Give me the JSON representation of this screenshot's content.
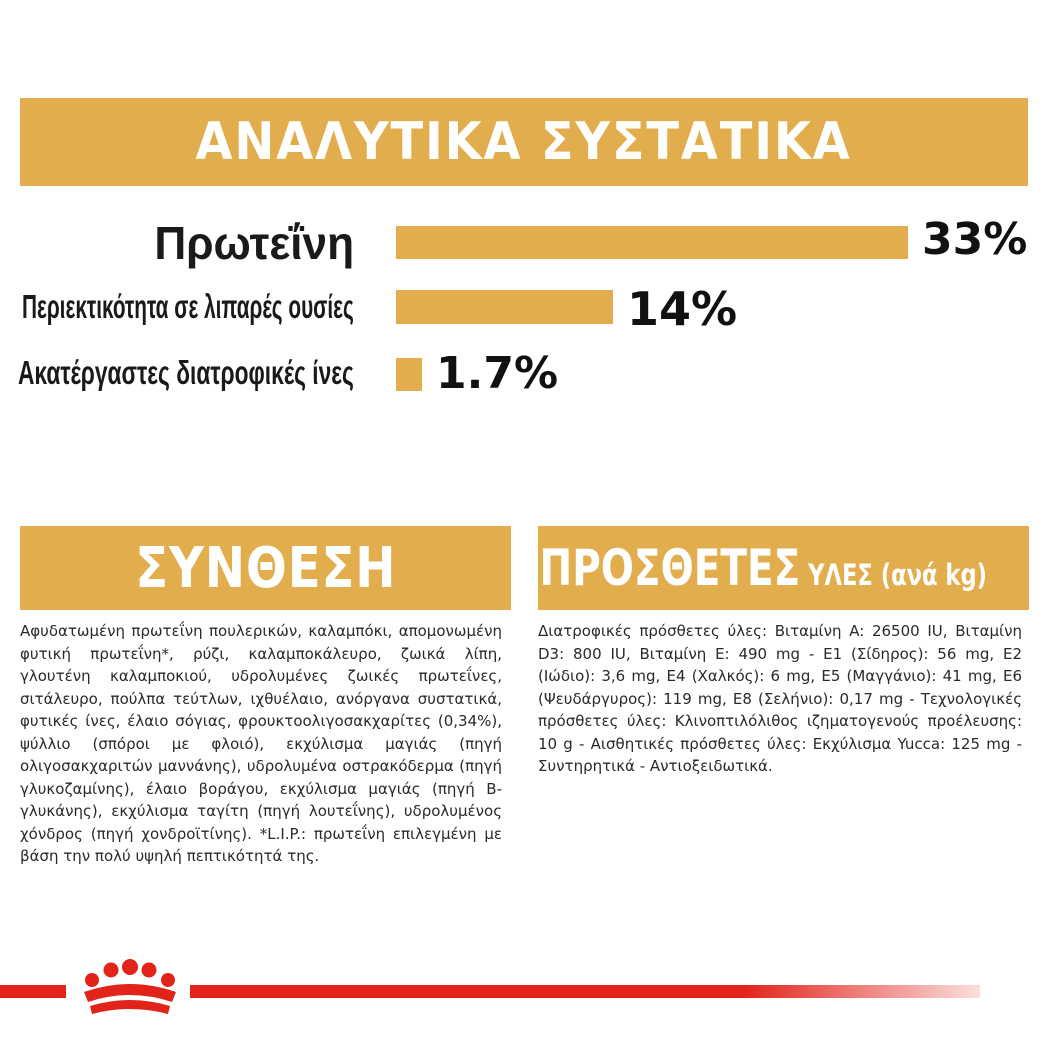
{
  "analysis": {
    "title": "ΑΝΑΛΥΤΙΚΑ ΣΥΣΤΑΤΙΚΑ",
    "max_percent": 33,
    "rows": [
      {
        "label": "Πρωτεΐνη",
        "value_text": "33%",
        "percent": 33
      },
      {
        "label": "Περιεκτικότητα σε λιπαρές ουσίες",
        "value_text": "14%",
        "percent": 14
      },
      {
        "label": "Ακατέργαστες διατροφικές ίνες",
        "value_text": "1.7%",
        "percent": 1.7
      }
    ]
  },
  "composition": {
    "title": "ΣΥΝΘΕΣΗ",
    "text": "Αφυδατωμένη πρωτεΐνη πουλερικών, καλαμπόκι, απομονωμένη φυτική πρωτεΐνη*, ρύζι, καλαμποκάλευρο, ζωικά λίπη, γλουτένη καλαμποκιού, υδρολυμένες ζωικές πρωτεΐνες, σιτάλευρο, πούλπα τεύτλων, ιχθυέλαιο, ανόργανα συστατικά, φυτικές ίνες, έλαιο σόγιας, φρουκτοολιγοσακχαρίτες (0,34%), ψύλλιο (σπόροι με φλοιό), εκχύλισμα μαγιάς (πηγή ολιγοσακχαριτών μαννάνης), υδρολυμένα οστρακόδερμα (πηγή γλυκοζαμίνης), έλαιο βοράγου, εκχύλισμα μαγιάς (πηγή Β-γλυκάνης), εκχύλισμα ταγίτη (πηγή λουτεΐνης), υδρολυμένος χόνδρος (πηγή χονδροϊτίνης). *L.I.P.: πρωτεΐνη επιλεγμένη με βάση την πολύ υψηλή πεπτικότητά της."
  },
  "additives": {
    "title": "ΠΡΟΣΘΕΤΕΣ",
    "subtitle": "ΥΛΕΣ (ανά kg)",
    "text": "Διατροφικές πρόσθετες ύλες: Βιταμίνη A: 26500 IU, Βιταμίνη D3: 800 IU, Βιταμίνη E: 490 mg - E1 (Σίδηρος): 56 mg, E2 (Ιώδιο): 3,6 mg, E4 (Χαλκός): 6 mg, E5 (Μαγγάνιο): 41 mg, E6 (Ψευδάργυρος): 119 mg, E8 (Σελήνιο): 0,17 mg - Τεχνολογικές πρόσθετες ύλες: Κλινοπτιλόλιθος ιζηματογενούς προέλευσης: 10 g - Αισθητικές πρόσθετες ύλες: Εκχύλισμα Yucca: 125 mg - Συντηρητικά - Αντιοξειδωτικά."
  },
  "brand": {
    "logo": "crown-logo-icon",
    "accent": "#e2231a",
    "banner_color": "#e2ad4c"
  }
}
